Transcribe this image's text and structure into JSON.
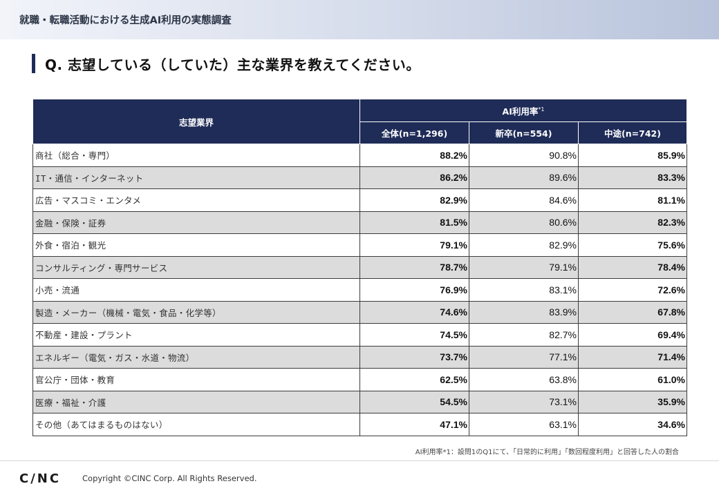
{
  "header": {
    "title": "就職・転職活動における生成AI利用の実態調査"
  },
  "question": "Q. 志望している（していた）主な業界を教えてください。",
  "table": {
    "col_industry": "志望業界",
    "col_group": "AI利用率",
    "col_group_mark": "*1",
    "col_total": "全体(n=1,296)",
    "col_new": "新卒(n=554)",
    "col_mid": "中途(n=742)",
    "rows": [
      {
        "label": "商社（総合・専門）",
        "total": "88.2%",
        "new": "90.8%",
        "mid": "85.9%"
      },
      {
        "label": "IT・通信・インターネット",
        "total": "86.2%",
        "new": "89.6%",
        "mid": "83.3%"
      },
      {
        "label": "広告・マスコミ・エンタメ",
        "total": "82.9%",
        "new": "84.6%",
        "mid": "81.1%"
      },
      {
        "label": "金融・保険・証券",
        "total": "81.5%",
        "new": "80.6%",
        "mid": "82.3%"
      },
      {
        "label": "外食・宿泊・観光",
        "total": "79.1%",
        "new": "82.9%",
        "mid": "75.6%"
      },
      {
        "label": "コンサルティング・専門サービス",
        "total": "78.7%",
        "new": "79.1%",
        "mid": "78.4%"
      },
      {
        "label": "小売・流通",
        "total": "76.9%",
        "new": "83.1%",
        "mid": "72.6%"
      },
      {
        "label": "製造・メーカー（機械・電気・食品・化学等）",
        "total": "74.6%",
        "new": "83.9%",
        "mid": "67.8%"
      },
      {
        "label": "不動産・建設・プラント",
        "total": "74.5%",
        "new": "82.7%",
        "mid": "69.4%"
      },
      {
        "label": "エネルギー（電気・ガス・水道・物流）",
        "total": "73.7%",
        "new": "77.1%",
        "mid": "71.4%"
      },
      {
        "label": "官公庁・団体・教育",
        "total": "62.5%",
        "new": "63.8%",
        "mid": "61.0%"
      },
      {
        "label": "医療・福祉・介護",
        "total": "54.5%",
        "new": "73.1%",
        "mid": "35.9%"
      },
      {
        "label": "その他（あてはまるものはない）",
        "total": "47.1%",
        "new": "63.1%",
        "mid": "34.6%"
      }
    ]
  },
  "footnote": "AI利用率*1：設問1のQ1にて、「日常的に利用」「数回程度利用」と回答した人の割合",
  "footer": {
    "logo": "C/NC",
    "copyright": "Copyright ©CINC Corp. All Rights Reserved."
  }
}
